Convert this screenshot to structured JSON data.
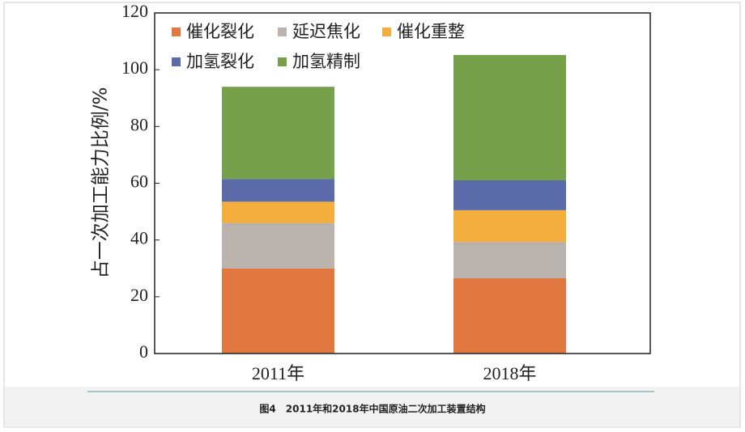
{
  "chart_data": {
    "type": "stacked_bar",
    "y_label": "占一次加工能力比例/%",
    "caption": "图4　2011年和2018年中国原油二次加工装置结构",
    "categories": [
      "2011年",
      "2018年"
    ],
    "series": [
      {
        "name": "催化裂化",
        "color": "#e07840",
        "values": [
          30,
          26.5
        ]
      },
      {
        "name": "延迟焦化",
        "color": "#bab3ad",
        "values": [
          16,
          12.8
        ]
      },
      {
        "name": "催化重整",
        "color": "#f4ae3d",
        "values": [
          7.5,
          11.2
        ]
      },
      {
        "name": "加氢裂化",
        "color": "#5b6aa8",
        "values": [
          8,
          10.5
        ]
      },
      {
        "name": "加氢精制",
        "color": "#76a04a",
        "values": [
          32.5,
          44.2
        ]
      }
    ],
    "ylim": [
      0,
      120
    ],
    "yticks": [
      0,
      20,
      40,
      60,
      80,
      100,
      120
    ],
    "legend": "upper left"
  }
}
